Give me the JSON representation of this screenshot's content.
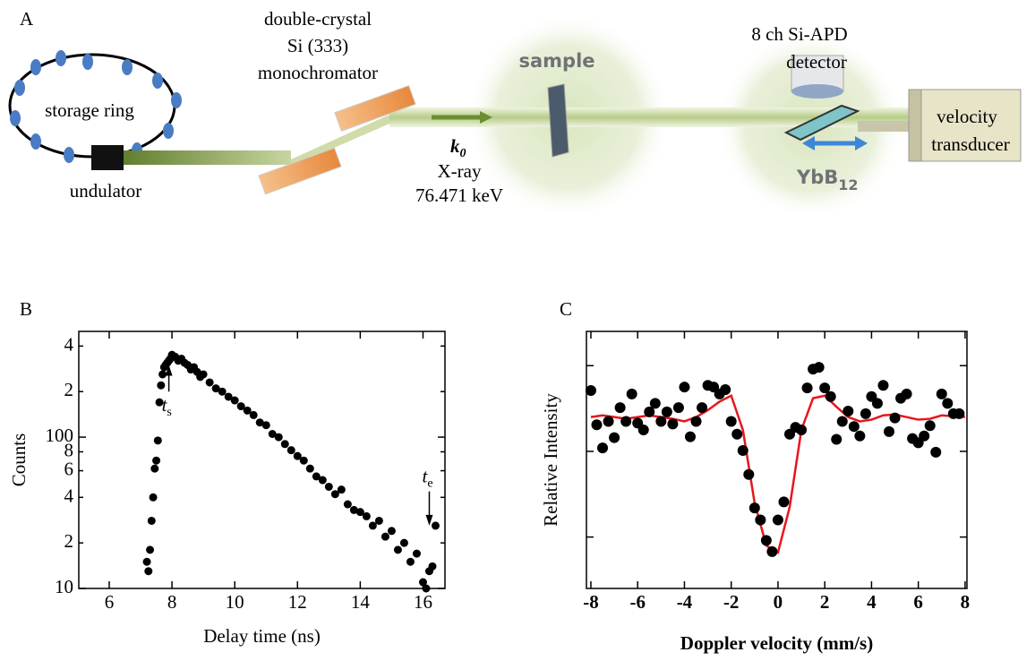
{
  "panel_a": {
    "label": "A",
    "storage_ring": "storage ring",
    "undulator": "undulator",
    "mono": [
      "double-crystal",
      "Si (333)",
      "monochromator"
    ],
    "wavevector": {
      "main": "k",
      "sub": "0"
    },
    "xray": "X-ray",
    "energy": "76.471 keV",
    "sample": "sample",
    "detector": [
      "8 ch Si-APD",
      "detector"
    ],
    "specimen": {
      "main": "YbB",
      "sub": "12"
    },
    "transducer": [
      "velocity",
      "transducer"
    ]
  },
  "chart_data": [
    {
      "type": "scatter",
      "label": "B",
      "xlabel": "Delay time (ns)",
      "ylabel": "Counts",
      "yscale": "log",
      "color": "#000000",
      "xlim": [
        5.03,
        16.7
      ],
      "xticks": [
        6,
        8,
        10,
        12,
        14,
        16
      ],
      "ylim": [
        10,
        500
      ],
      "yticks": [
        10,
        {
          "value": 20,
          "label": "2"
        },
        {
          "value": 40,
          "label": "4"
        },
        {
          "value": 60,
          "label": "6"
        },
        {
          "value": 80,
          "label": "8"
        },
        100,
        {
          "value": 200,
          "label": "2"
        },
        {
          "value": 400,
          "label": "4"
        }
      ],
      "x": [
        7.2,
        7.25,
        7.3,
        7.35,
        7.4,
        7.45,
        7.5,
        7.55,
        7.6,
        7.65,
        7.7,
        7.75,
        7.8,
        7.85,
        7.9,
        7.95,
        8.0,
        8.1,
        8.2,
        8.3,
        8.4,
        8.5,
        8.6,
        8.7,
        8.8,
        8.9,
        9.0,
        9.2,
        9.4,
        9.6,
        9.8,
        10.0,
        10.2,
        10.4,
        10.6,
        10.8,
        11.0,
        11.2,
        11.4,
        11.6,
        11.8,
        12.0,
        12.2,
        12.4,
        12.6,
        12.8,
        13.0,
        13.2,
        13.4,
        13.6,
        13.8,
        14.0,
        14.2,
        14.4,
        14.6,
        14.8,
        15.0,
        15.2,
        15.4,
        15.6,
        15.8,
        16.0,
        16.1,
        16.2,
        16.3,
        16.4
      ],
      "values": [
        15,
        13,
        18,
        28,
        40,
        62,
        70,
        95,
        170,
        220,
        260,
        290,
        300,
        310,
        320,
        330,
        350,
        340,
        320,
        330,
        310,
        300,
        280,
        290,
        270,
        250,
        260,
        230,
        210,
        200,
        185,
        175,
        160,
        150,
        140,
        125,
        120,
        105,
        100,
        90,
        82,
        75,
        70,
        62,
        55,
        52,
        47,
        42,
        45,
        36,
        33,
        32,
        30,
        26,
        28,
        22,
        24,
        18,
        20,
        15,
        17,
        11,
        10,
        13,
        14,
        26
      ],
      "annotations": [
        {
          "main": "t",
          "sub": "s",
          "x": 7.9,
          "y": 200,
          "arrow_to": 300
        },
        {
          "main": "t",
          "sub": "e",
          "x": 16.2,
          "y": 45,
          "arrow_to": 26
        }
      ]
    },
    {
      "type": "scatter",
      "label": "C",
      "xlabel": "Doppler velocity (mm/s)",
      "ylabel": "Relative Intensity",
      "color": "#000000",
      "show_ytick_labels": false,
      "xlim": [
        -8.19,
        8.08
      ],
      "xticks": [
        -8,
        -6,
        -4,
        -2,
        0,
        2,
        4,
        6,
        8
      ],
      "ylim": [
        0,
        3
      ],
      "yticks": [
        0.6,
        1.6,
        2.6
      ],
      "x": [
        -8,
        -7.75,
        -7.5,
        -7.25,
        -7,
        -6.75,
        -6.5,
        -6.25,
        -6,
        -5.75,
        -5.5,
        -5.25,
        -5,
        -4.75,
        -4.5,
        -4.25,
        -4,
        -3.75,
        -3.5,
        -3.25,
        -3,
        -2.75,
        -2.5,
        -2.25,
        -2,
        -1.75,
        -1.5,
        -1.25,
        -1,
        -0.75,
        -0.5,
        -0.25,
        0,
        0.25,
        0.5,
        0.75,
        1,
        1.25,
        1.5,
        1.75,
        2,
        2.25,
        2.5,
        2.75,
        3,
        3.25,
        3.5,
        3.75,
        4,
        4.25,
        4.5,
        4.75,
        5,
        5.25,
        5.5,
        5.75,
        6,
        6.25,
        6.5,
        6.75,
        7,
        7.25,
        7.5,
        7.75
      ],
      "values": [
        2.31,
        1.91,
        1.64,
        1.95,
        1.76,
        2.11,
        1.95,
        2.27,
        1.93,
        1.85,
        2.06,
        2.16,
        1.95,
        2.06,
        1.92,
        2.11,
        2.35,
        1.77,
        1.95,
        2.11,
        2.37,
        2.35,
        2.27,
        2.32,
        1.95,
        1.8,
        1.61,
        1.33,
        0.94,
        0.8,
        0.56,
        0.43,
        0.8,
        1.01,
        1.8,
        1.88,
        1.85,
        2.34,
        2.56,
        2.58,
        2.34,
        2.24,
        1.74,
        1.95,
        2.07,
        1.89,
        1.78,
        2.04,
        2.24,
        2.16,
        2.37,
        1.83,
        1.99,
        2.22,
        2.27,
        1.75,
        1.7,
        1.78,
        1.9,
        1.59,
        2.27,
        2.16,
        2.04,
        2.04
      ],
      "fit": {
        "type": "line",
        "color": "#e8161b",
        "x": [
          -8,
          -7.5,
          -7,
          -6.5,
          -6,
          -5.5,
          -5,
          -4.5,
          -4,
          -3.5,
          -3,
          -2.5,
          -2,
          -1.5,
          -1,
          -0.5,
          0,
          0.5,
          1,
          1.5,
          2,
          2.5,
          3,
          3.5,
          4,
          4.5,
          5,
          5.5,
          6,
          6.5,
          7,
          7.5,
          8
        ],
        "values": [
          2.0,
          2.02,
          2.0,
          1.98,
          2.0,
          2.02,
          2.0,
          1.98,
          1.95,
          2.0,
          2.08,
          2.18,
          2.25,
          1.85,
          1.0,
          0.5,
          0.42,
          0.95,
          1.85,
          2.22,
          2.25,
          2.12,
          2.0,
          1.95,
          1.97,
          2.02,
          2.03,
          2.0,
          1.97,
          1.98,
          2.02,
          2.01,
          2.0
        ]
      }
    }
  ]
}
